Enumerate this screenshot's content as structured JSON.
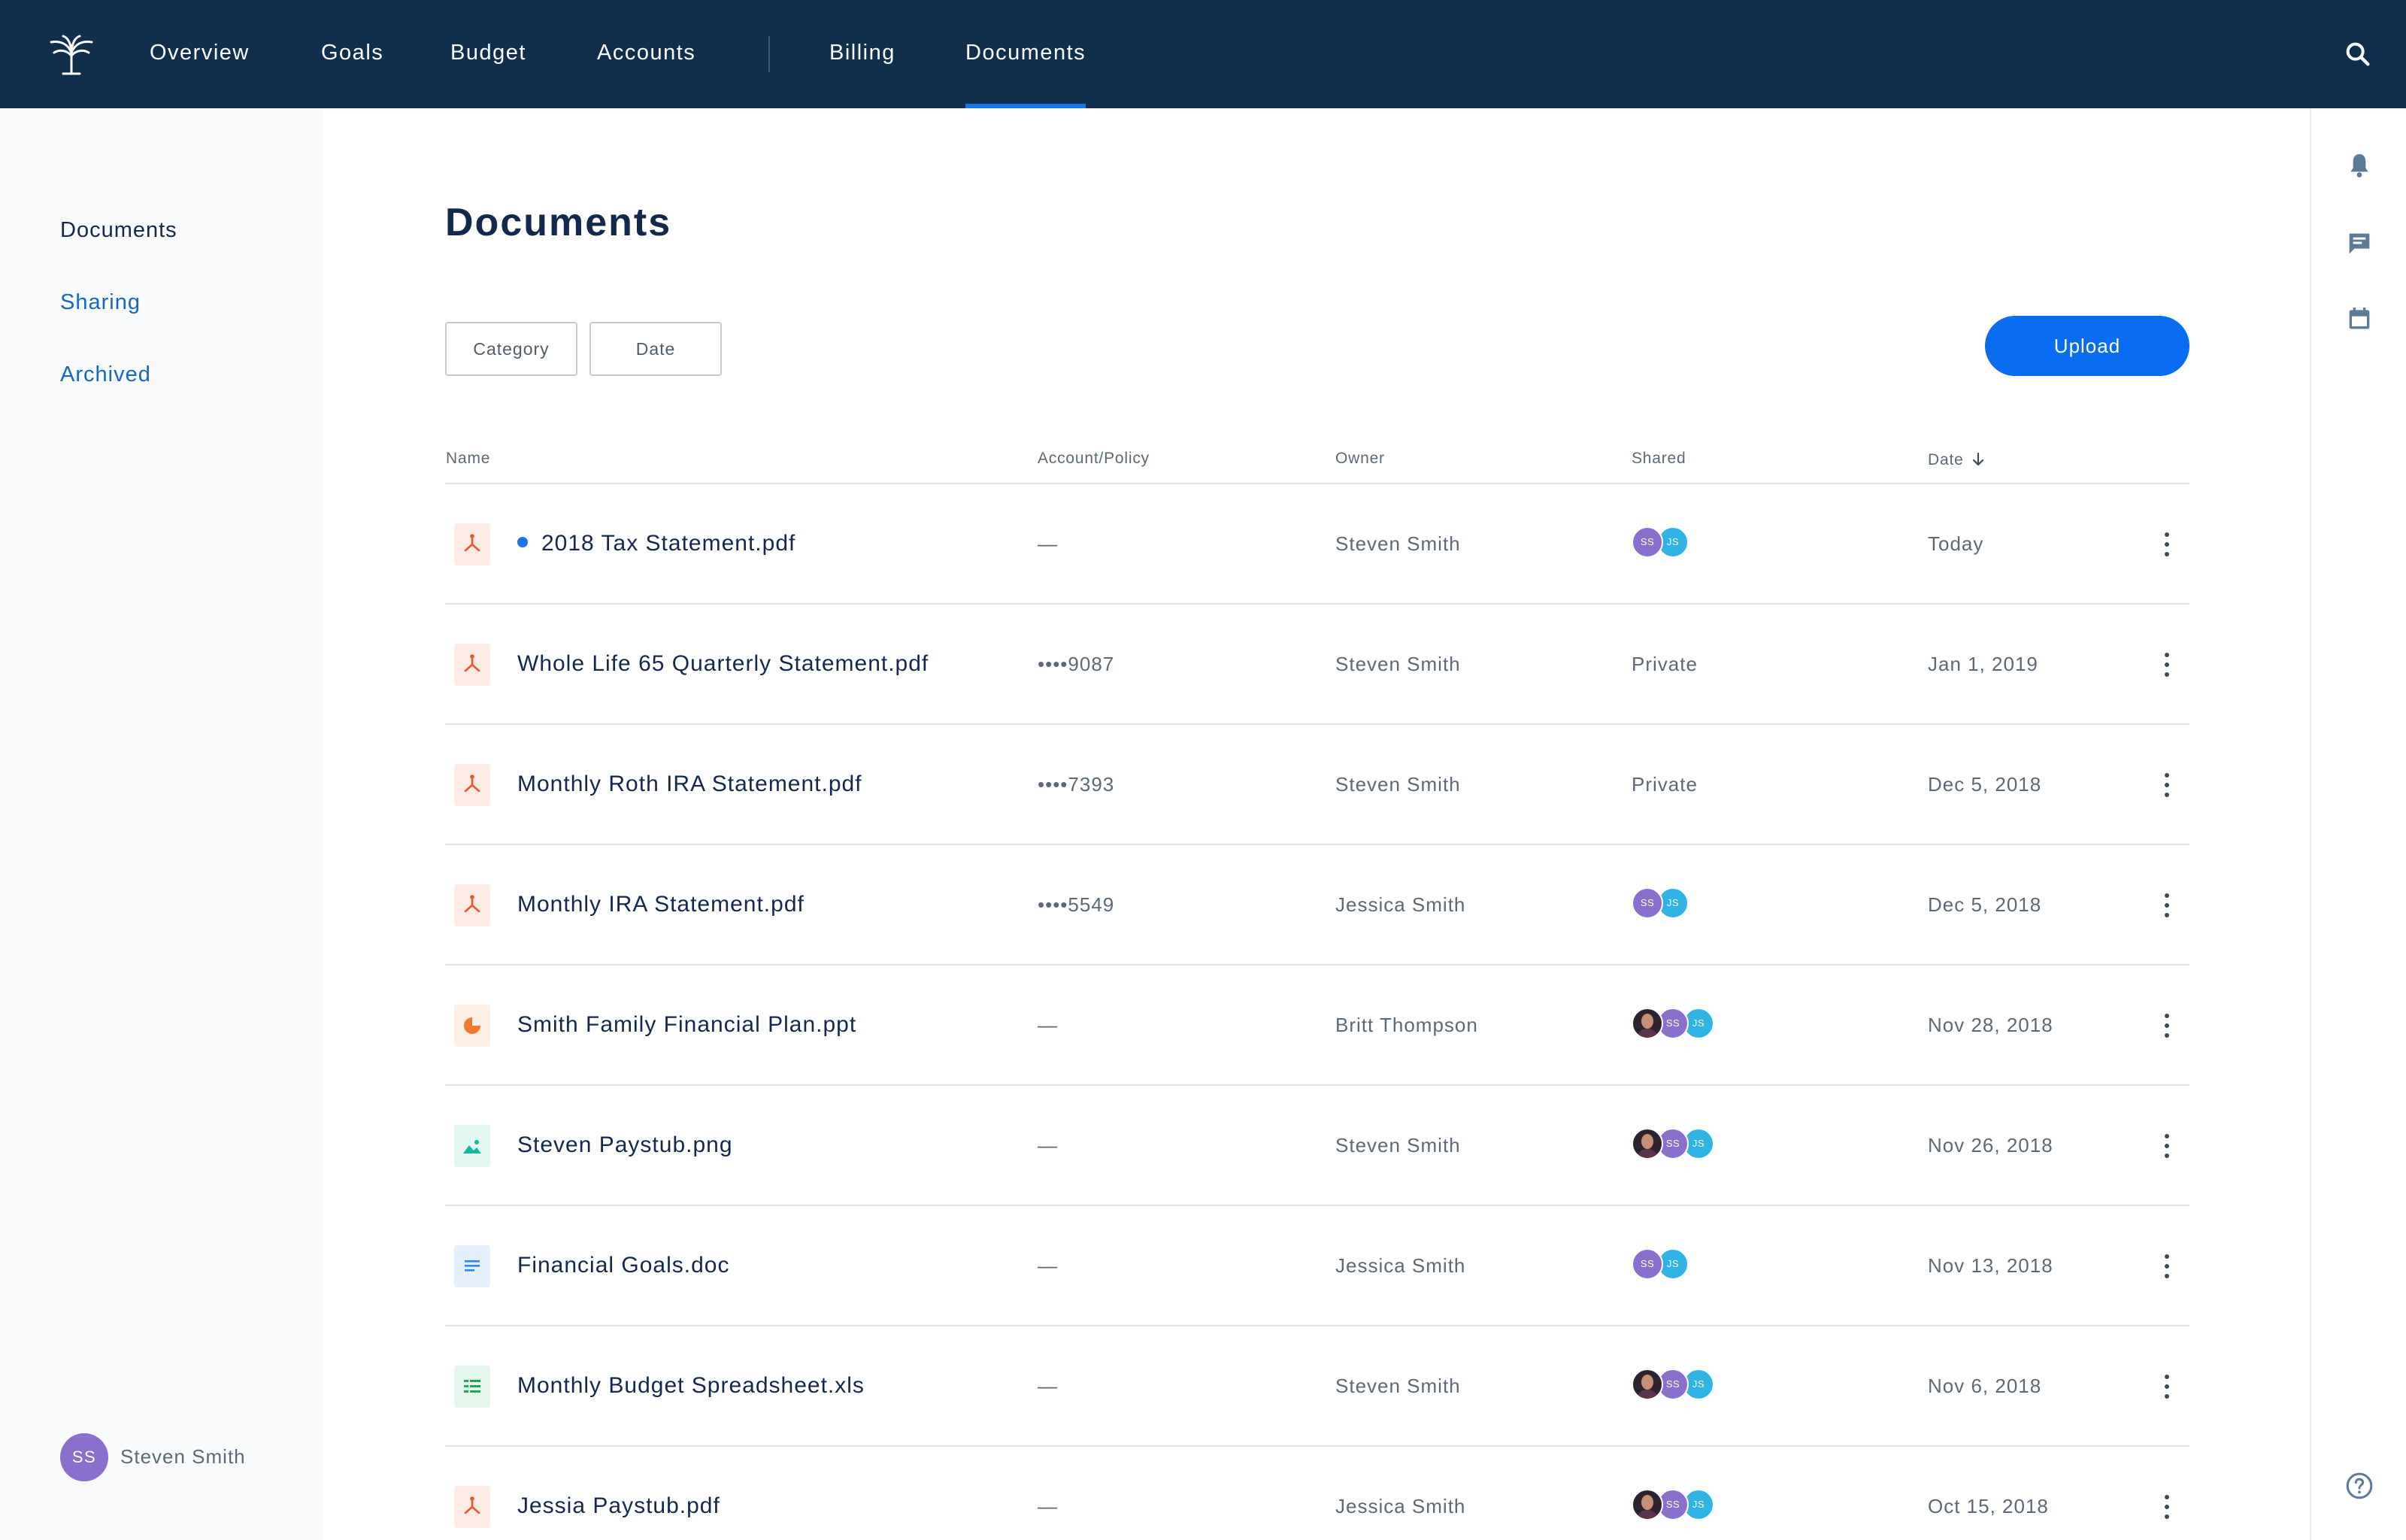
{
  "nav": {
    "items": [
      {
        "label": "Overview"
      },
      {
        "label": "Goals"
      },
      {
        "label": "Budget"
      },
      {
        "label": "Accounts"
      },
      {
        "label": "Billing"
      },
      {
        "label": "Documents",
        "active": true
      }
    ],
    "search_icon": "search-icon"
  },
  "sidebar": {
    "items": [
      {
        "label": "Documents",
        "active": true
      },
      {
        "label": "Sharing"
      },
      {
        "label": "Archived"
      }
    ],
    "user": {
      "initials": "SS",
      "name": "Steven Smith"
    }
  },
  "rail": {
    "icons": [
      "bell-icon",
      "chat-icon",
      "calendar-icon",
      "help-icon"
    ]
  },
  "main": {
    "title": "Documents",
    "filters": {
      "category": "Category",
      "date": "Date"
    },
    "upload_label": "Upload",
    "columns": {
      "name": "Name",
      "account": "Account/Policy",
      "owner": "Owner",
      "shared": "Shared",
      "date": "Date"
    },
    "sort_icon": "arrow-down-icon"
  },
  "colors": {
    "nav_bg": "#0f2f4d",
    "accent": "#0a6cf0",
    "pdf": "#f0542d",
    "ppt": "#f07a2d",
    "image": "#14b8a0",
    "doc": "#2b8ae6",
    "sheet": "#1fa85a",
    "avatar_ss": "#8a6fcf",
    "avatar_js": "#32b3e6"
  },
  "documents": [
    {
      "name": "2018 Tax Statement.pdf",
      "type": "pdf",
      "is_new": true,
      "account": "—",
      "owner": "Steven Smith",
      "shared": [
        "SS",
        "JS"
      ],
      "date": "Today"
    },
    {
      "name": "Whole Life 65 Quarterly Statement.pdf",
      "type": "pdf",
      "account": "••••9087",
      "owner": "Steven Smith",
      "shared_text": "Private",
      "date": "Jan 1, 2019"
    },
    {
      "name": "Monthly Roth IRA Statement.pdf",
      "type": "pdf",
      "account": "••••7393",
      "owner": "Steven Smith",
      "shared_text": "Private",
      "date": "Dec 5, 2018"
    },
    {
      "name": "Monthly IRA Statement.pdf",
      "type": "pdf",
      "account": "••••5549",
      "owner": "Jessica Smith",
      "shared": [
        "SS",
        "JS"
      ],
      "date": "Dec 5, 2018"
    },
    {
      "name": "Smith Family Financial Plan.ppt",
      "type": "ppt",
      "account": "—",
      "owner": "Britt Thompson",
      "shared": [
        "photo",
        "SS",
        "JS"
      ],
      "date": "Nov 28, 2018"
    },
    {
      "name": "Steven Paystub.png",
      "type": "image",
      "account": "—",
      "owner": "Steven Smith",
      "shared": [
        "photo",
        "SS",
        "JS"
      ],
      "date": "Nov 26, 2018"
    },
    {
      "name": "Financial Goals.doc",
      "type": "doc",
      "account": "—",
      "owner": "Jessica Smith",
      "shared": [
        "SS",
        "JS"
      ],
      "date": "Nov 13, 2018"
    },
    {
      "name": "Monthly Budget Spreadsheet.xls",
      "type": "sheet",
      "account": "—",
      "owner": "Steven Smith",
      "shared": [
        "photo",
        "SS",
        "JS"
      ],
      "date": "Nov 6, 2018"
    },
    {
      "name": "Jessia Paystub.pdf",
      "type": "pdf",
      "account": "—",
      "owner": "Jessica Smith",
      "shared": [
        "photo",
        "SS",
        "JS"
      ],
      "date": "Oct 15, 2018"
    }
  ]
}
